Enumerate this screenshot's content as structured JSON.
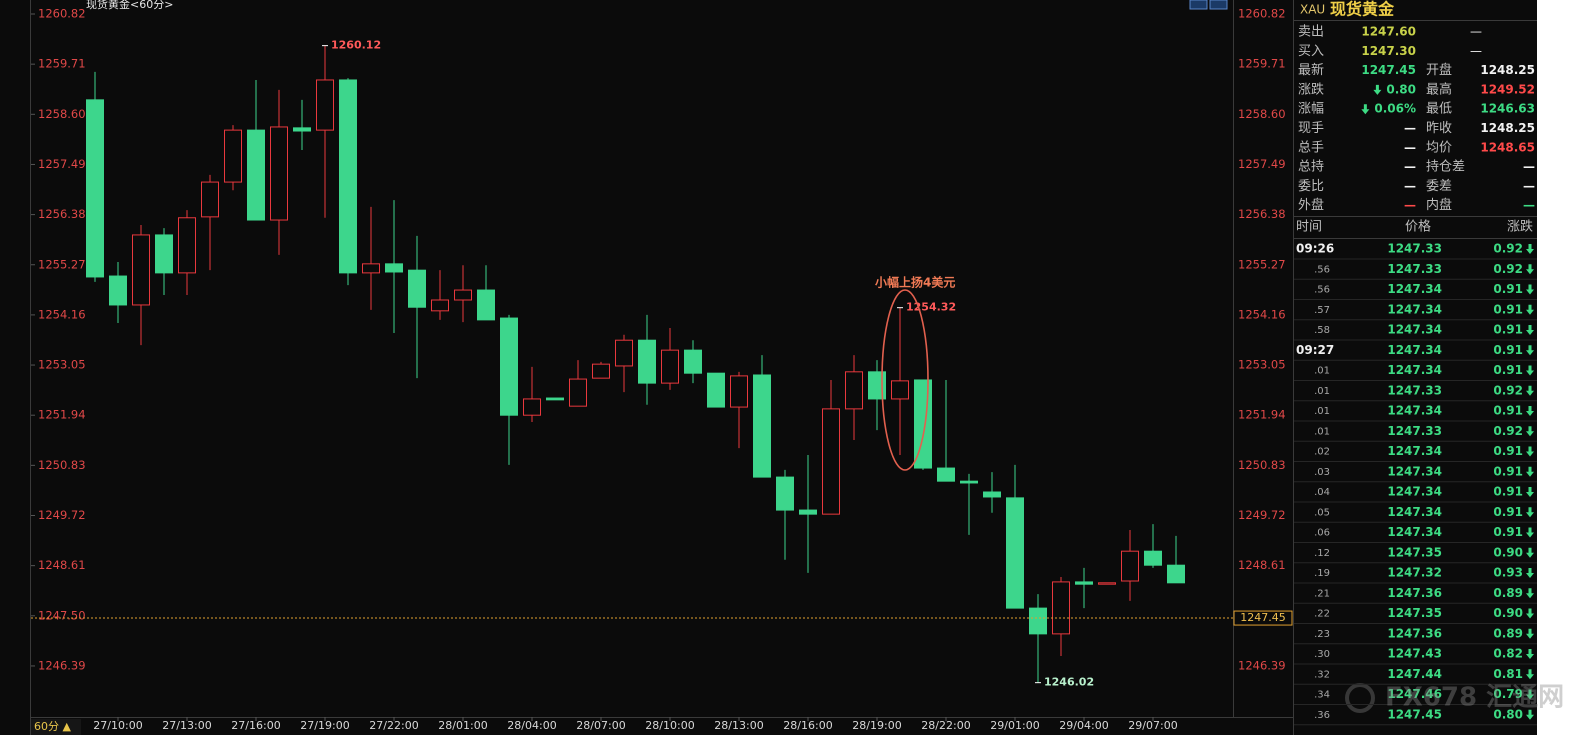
{
  "chart_data": {
    "type": "candlestick",
    "title": "现货黄金<60分>",
    "period_button": "60分 ▲",
    "annotation": "小幅上扬4美元",
    "up_color": "#e8383d",
    "down_color": "#3dd68c",
    "last_price": 1247.45,
    "ylim": [
      1245.26,
      1261.13
    ],
    "yticks": [
      1260.82,
      1259.71,
      {
        "value": 1258.6,
        "label": "1258.60"
      },
      1257.49,
      1256.38,
      1255.27,
      1254.16,
      1253.05,
      1251.94,
      1250.83,
      1249.72,
      1248.61,
      {
        "value": 1247.5,
        "label": "1247.50"
      },
      1246.39
    ],
    "categories": [
      null,
      "27/10:00",
      null,
      null,
      "27/13:00",
      null,
      null,
      "27/16:00",
      null,
      null,
      "27/19:00",
      null,
      null,
      "27/22:00",
      null,
      null,
      "28/01:00",
      null,
      null,
      "28/04:00",
      null,
      null,
      "28/07:00",
      null,
      null,
      "28/10:00",
      null,
      null,
      "28/13:00",
      null,
      null,
      "28/16:00",
      null,
      null,
      "28/19:00",
      null,
      null,
      "28/22:00",
      null,
      null,
      "29/01:00",
      null,
      null,
      "29/04:00",
      null,
      null,
      "29/07:00",
      null
    ],
    "open": [
      1258.92,
      1255.02,
      1254.38,
      1255.93,
      1255.09,
      1256.33,
      1257.1,
      1258.25,
      1256.26,
      1258.3,
      1258.25,
      1259.36,
      1255.09,
      1255.29,
      1255.15,
      1254.25,
      1254.49,
      1254.71,
      1254.09,
      1251.94,
      1252.32,
      1252.14,
      1252.76,
      1253.03,
      1253.6,
      1252.65,
      1253.38,
      1252.87,
      1252.12,
      1252.83,
      1250.57,
      1249.84,
      1249.75,
      1252.08,
      1252.9,
      1252.3,
      1252.72,
      1250.77,
      1250.48,
      1250.24,
      1250.11,
      1247.67,
      1247.1,
      1248.25,
      1248.2,
      1248.27,
      1248.93,
      1248.62
    ],
    "high": [
      1259.54,
      1255.33,
      1256.15,
      1256.08,
      1256.48,
      1257.26,
      1258.36,
      1259.36,
      1259.14,
      1258.92,
      1260.12,
      1259.4,
      1256.55,
      1256.7,
      1255.91,
      1255.15,
      1255.26,
      1255.26,
      1254.16,
      1253.01,
      1252.32,
      1253.16,
      1253.12,
      1253.72,
      1254.16,
      1253.87,
      1253.6,
      1252.87,
      1252.9,
      1253.27,
      1250.73,
      1251.06,
      1252.72,
      1253.27,
      1253.16,
      1254.32,
      1252.72,
      1252.72,
      1250.64,
      1250.68,
      1250.84,
      1247.98,
      1248.36,
      1248.56,
      1248.23,
      1249.4,
      1249.53,
      1249.27
    ],
    "low": [
      1254.89,
      1253.98,
      1253.49,
      1254.6,
      1254.6,
      1255.15,
      1256.92,
      1256.26,
      1255.49,
      1257.81,
      1256.31,
      1254.82,
      1254.27,
      1253.76,
      1252.76,
      1254.05,
      1254.0,
      1254.05,
      1250.84,
      1251.79,
      1252.28,
      1252.14,
      1252.76,
      1252.45,
      1252.17,
      1252.5,
      1252.65,
      1252.12,
      1251.21,
      1250.57,
      1248.74,
      1248.45,
      1249.75,
      1251.39,
      1251.61,
      1251.06,
      1250.73,
      1250.48,
      1249.29,
      1249.78,
      1247.67,
      1246.02,
      1246.61,
      1247.67,
      1248.2,
      1247.83,
      1248.56,
      1248.23
    ],
    "close": [
      1255.0,
      1254.38,
      1255.93,
      1255.09,
      1256.31,
      1257.1,
      1258.25,
      1256.26,
      1258.32,
      1258.23,
      1259.36,
      1255.09,
      1255.29,
      1255.11,
      1254.33,
      1254.49,
      1254.71,
      1254.05,
      1251.94,
      1252.3,
      1252.28,
      1252.74,
      1253.07,
      1253.6,
      1252.65,
      1253.38,
      1252.87,
      1252.12,
      1252.81,
      1250.57,
      1249.84,
      1249.75,
      1252.08,
      1252.9,
      1252.3,
      1252.7,
      1250.77,
      1250.48,
      1250.44,
      1250.13,
      1247.67,
      1247.1,
      1248.25,
      1248.2,
      1248.23,
      1248.93,
      1248.62,
      1248.23
    ]
  },
  "quote_panel": {
    "symbol": "XAU",
    "name": "现货黄金",
    "rows": [
      [
        "卖出",
        "1247.60",
        "—"
      ],
      [
        "买入",
        "1247.30",
        "—"
      ],
      [
        "最新",
        "1247.45",
        "开盘",
        "1248.25"
      ],
      [
        "涨跌",
        "0.80",
        "最高",
        "1249.52"
      ],
      [
        "涨幅",
        "0.06%",
        "最低",
        "1246.63"
      ],
      [
        "现手",
        "—",
        "昨收",
        "1248.25"
      ],
      [
        "总手",
        "—",
        "均价",
        "1248.65"
      ],
      [
        "总持",
        "—",
        "持仓差",
        "—"
      ],
      [
        "委比",
        "—",
        "委差",
        "—"
      ],
      [
        "外盘",
        "—",
        "内盘",
        "—"
      ]
    ],
    "trade_header": [
      "时间",
      "价格",
      "涨跌"
    ],
    "trades": [
      [
        "09:26",
        "1247.33",
        "0.92"
      ],
      [
        ".56",
        "1247.33",
        "0.92"
      ],
      [
        ".56",
        "1247.34",
        "0.91"
      ],
      [
        ".57",
        "1247.34",
        "0.91"
      ],
      [
        ".58",
        "1247.34",
        "0.91"
      ],
      [
        "09:27",
        "1247.34",
        "0.91"
      ],
      [
        ".01",
        "1247.34",
        "0.91"
      ],
      [
        ".01",
        "1247.33",
        "0.92"
      ],
      [
        ".01",
        "1247.34",
        "0.91"
      ],
      [
        ".01",
        "1247.33",
        "0.92"
      ],
      [
        ".02",
        "1247.34",
        "0.91"
      ],
      [
        ".03",
        "1247.34",
        "0.91"
      ],
      [
        ".04",
        "1247.34",
        "0.91"
      ],
      [
        ".05",
        "1247.34",
        "0.91"
      ],
      [
        ".06",
        "1247.34",
        "0.91"
      ],
      [
        ".12",
        "1247.35",
        "0.90"
      ],
      [
        ".19",
        "1247.32",
        "0.93"
      ],
      [
        ".21",
        "1247.36",
        "0.89"
      ],
      [
        ".22",
        "1247.35",
        "0.90"
      ],
      [
        ".23",
        "1247.36",
        "0.89"
      ],
      [
        ".30",
        "1247.43",
        "0.82"
      ],
      [
        ".32",
        "1247.44",
        "0.81"
      ],
      [
        ".34",
        "1247.46",
        "0.79"
      ],
      [
        ".36",
        "1247.45",
        "0.80"
      ]
    ],
    "watermark": "FX678 汇通网"
  }
}
